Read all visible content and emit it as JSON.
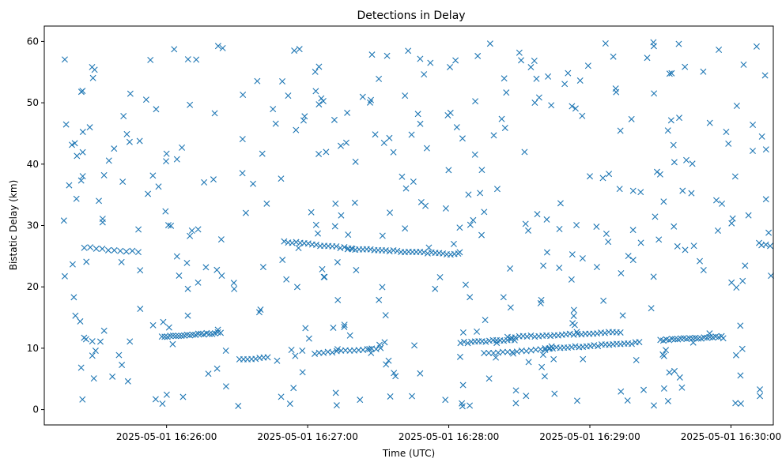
{
  "chart_data": {
    "type": "scatter",
    "title": "Detections in Delay",
    "xlabel": "Time (UTC)",
    "ylabel": "Bistatic Delay (km)",
    "marker": "x",
    "color": "#1f77b4",
    "xlim_seconds": [
      -52,
      258
    ],
    "ylim": [
      -2.5,
      62.5
    ],
    "x_ticks": [
      {
        "t": 0,
        "label": "2025-05-01 16:26:00"
      },
      {
        "t": 60,
        "label": "2025-05-01 16:27:00"
      },
      {
        "t": 120,
        "label": "2025-05-01 16:28:00"
      },
      {
        "t": 180,
        "label": "2025-05-01 16:29:00"
      },
      {
        "t": 240,
        "label": "2025-05-01 16:30:00"
      }
    ],
    "y_ticks": [
      0,
      10,
      20,
      30,
      40,
      50,
      60
    ],
    "tracks": [
      {
        "t_start": -35,
        "t_end": -12,
        "y_start": 26.4,
        "y_end": 25.7,
        "count": 10
      },
      {
        "t_start": -2,
        "t_end": 23,
        "y_start": 11.9,
        "y_end": 12.5,
        "count": 22
      },
      {
        "t_start": 31,
        "t_end": 43,
        "y_start": 8.2,
        "y_end": 8.5,
        "count": 8
      },
      {
        "t_start": 50,
        "t_end": 79,
        "y_start": 27.4,
        "y_end": 26.2,
        "count": 18
      },
      {
        "t_start": 63,
        "t_end": 91,
        "y_start": 9.2,
        "y_end": 10.0,
        "count": 16
      },
      {
        "t_start": 77,
        "t_end": 124,
        "y_start": 26.2,
        "y_end": 25.3,
        "count": 30
      },
      {
        "t_start": 125,
        "t_end": 148,
        "y_start": 10.9,
        "y_end": 11.4,
        "count": 16
      },
      {
        "t_start": 135,
        "t_end": 163,
        "y_start": 9.1,
        "y_end": 9.9,
        "count": 15
      },
      {
        "t_start": 145,
        "t_end": 193,
        "y_start": 11.8,
        "y_end": 12.6,
        "count": 30
      },
      {
        "t_start": 161,
        "t_end": 201,
        "y_start": 9.9,
        "y_end": 10.9,
        "count": 26
      },
      {
        "t_start": 210,
        "t_end": 236,
        "y_start": 11.3,
        "y_end": 11.9,
        "count": 22
      },
      {
        "t_start": 253,
        "t_end": 264,
        "y_start": 26.9,
        "y_end": 26.5,
        "count": 7
      }
    ],
    "noise": {
      "t_range": [
        -46,
        262
      ],
      "y_range": [
        0.5,
        60
      ],
      "count": 430
    }
  }
}
